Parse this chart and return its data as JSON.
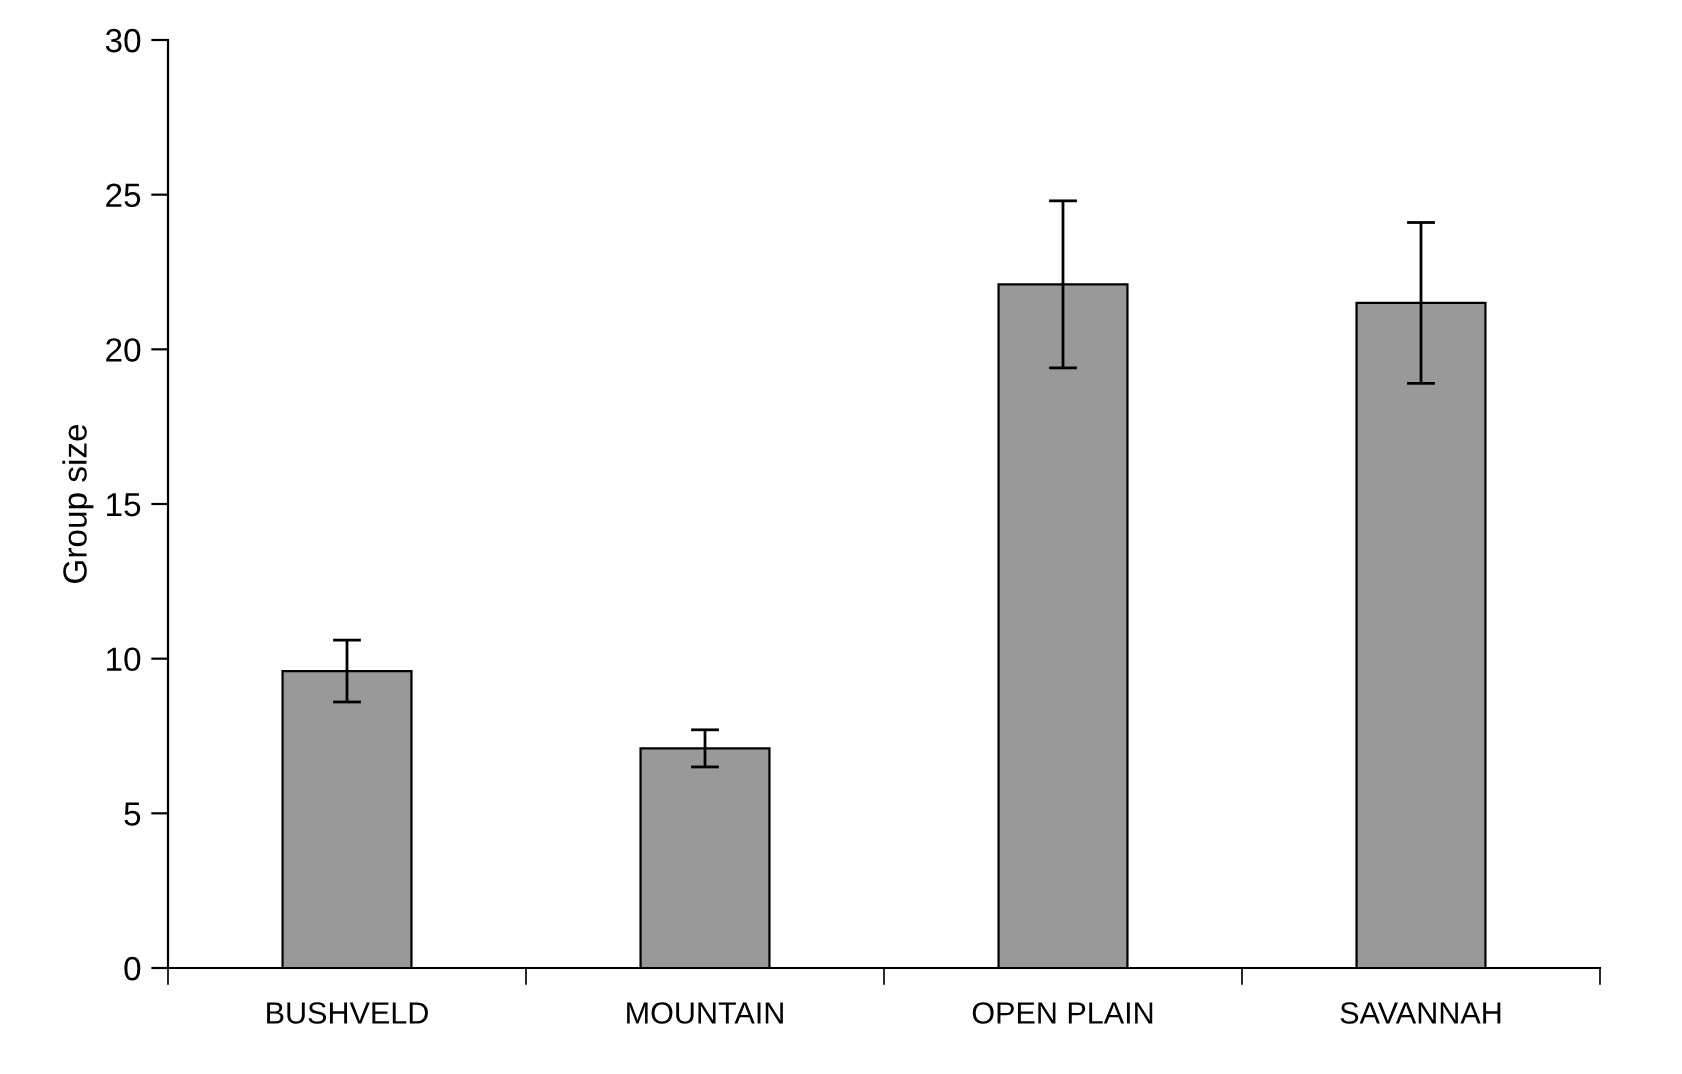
{
  "chart_data": {
    "type": "bar",
    "ylabel": "Group size",
    "categories": [
      "BUSHVELD",
      "MOUNTAIN",
      "OPEN PLAIN",
      "SAVANNAH"
    ],
    "values": [
      9.6,
      7.1,
      22.1,
      21.5
    ],
    "errors": [
      1.0,
      0.6,
      2.7,
      2.6
    ],
    "color": "#999999",
    "ylim": [
      0,
      30
    ],
    "yticks": [
      0,
      5,
      10,
      15,
      20,
      25,
      30
    ],
    "grid": false
  }
}
